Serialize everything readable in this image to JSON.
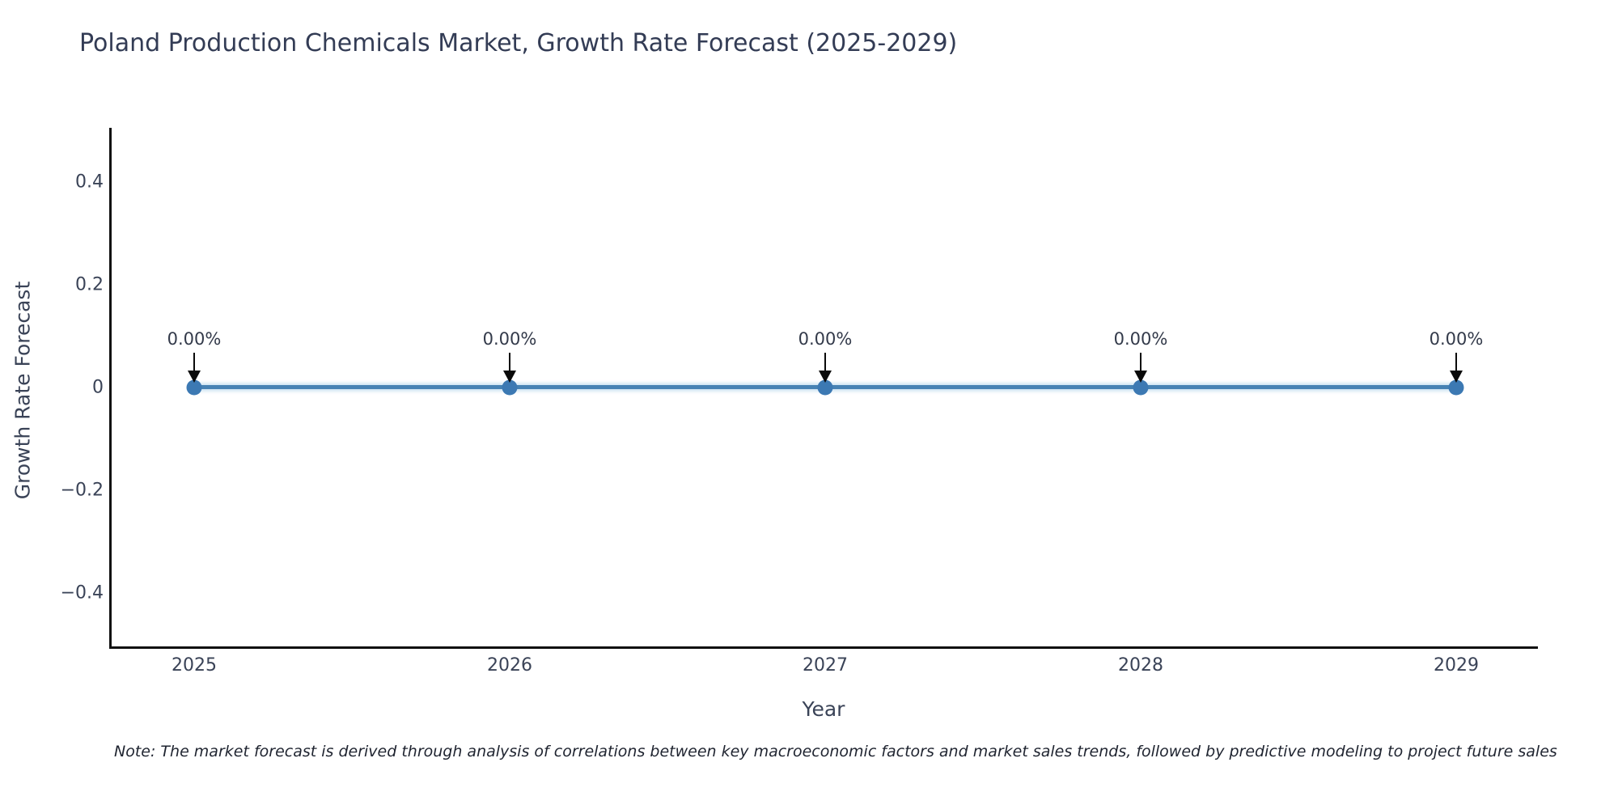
{
  "title": "Poland Production Chemicals Market, Growth Rate Forecast (2025-2029)",
  "note": "Note: The market forecast is derived through analysis of correlations between key macroeconomic factors and market sales trends, followed by predictive modeling to project future sales",
  "chart_data": {
    "type": "line",
    "title": "Poland Production Chemicals Market, Growth Rate Forecast (2025-2029)",
    "xlabel": "Year",
    "ylabel": "Growth Rate Forecast",
    "x": [
      2025,
      2026,
      2027,
      2028,
      2029
    ],
    "series": [
      {
        "name": "Growth Rate Forecast",
        "values": [
          0.0,
          0.0,
          0.0,
          0.0,
          0.0
        ]
      }
    ],
    "point_labels": [
      "0.00%",
      "0.00%",
      "0.00%",
      "0.00%",
      "0.00%"
    ],
    "xtick_labels": [
      "2025",
      "2026",
      "2027",
      "2028",
      "2029"
    ],
    "ytick_values": [
      0.4,
      0.2,
      0,
      -0.2,
      -0.4
    ],
    "ytick_labels": [
      "0.4",
      "0.2",
      "0",
      "−0.2",
      "−0.4"
    ],
    "ylim": [
      -0.5,
      0.5
    ],
    "grid": false,
    "legend": "none",
    "line_color": "#4682b4",
    "marker_color": "#3c79b3",
    "annotation_arrow_color": "#0a0a0a",
    "axis_color": "#111111",
    "title_color": "#333c55",
    "tick_color": "#3a4357"
  }
}
